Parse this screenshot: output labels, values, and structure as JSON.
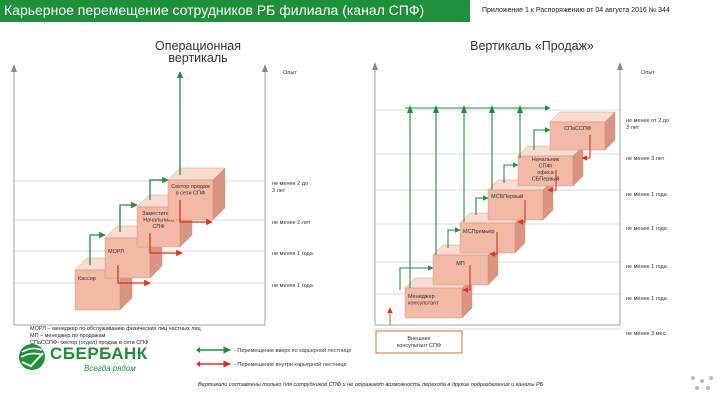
{
  "header": {
    "title": "Карьерное перемещение сотрудников РБ филиала (канал СПФ)",
    "appendix": "Приложение 1 к Распоряжению от 04 августа 2016 № 344"
  },
  "left": {
    "heading_line1": "Операционная",
    "heading_line2": "вертикаль",
    "experience": "Опыт",
    "boxes": [
      {
        "id": "kassir",
        "label": [
          "Кассир"
        ]
      },
      {
        "id": "mobsl",
        "label": [
          "МОРЛ"
        ]
      },
      {
        "id": "zam",
        "label": [
          "Заместитель",
          "Начальника",
          "СПФ"
        ]
      },
      {
        "id": "sektor",
        "label": [
          "Сектор продаж",
          "в сети СПФ"
        ]
      }
    ],
    "reqs": [
      [
        "не менее 1 года"
      ],
      [
        "не менее 1 года"
      ],
      [
        "не менее 2 лет"
      ],
      [
        "не менее 2 до",
        "3 лет"
      ]
    ]
  },
  "right": {
    "heading": "Вертикаль «Продаж»",
    "experience": "Опыт",
    "boxes": [
      {
        "id": "menedzher",
        "label": [
          "Менеджер",
          "консультант"
        ]
      },
      {
        "id": "mp",
        "label": [
          "МП"
        ]
      },
      {
        "id": "mspremer",
        "label": [
          "МСПремьер"
        ]
      },
      {
        "id": "msbpervyi",
        "label": [
          "МСБПервый"
        ]
      },
      {
        "id": "nach",
        "label": [
          "Начальник",
          "СПФ/",
          "офиса",
          "СБПервый"
        ]
      },
      {
        "id": "spfssr",
        "label": [
          "СПаССПФ"
        ]
      }
    ],
    "reqs": [
      [
        "не менее 3 мес."
      ],
      [
        "не менее 1 года"
      ],
      [
        "не менее 1 года"
      ],
      [
        "не менее 1 года"
      ],
      [
        "не менее 1 года"
      ],
      [
        "не менее 3 лет"
      ],
      [
        "не менее от 2 до",
        "3 лет"
      ]
    ],
    "external": [
      "Внешние",
      "консультант СПФ"
    ]
  },
  "legend": {
    "green": "- Перемещение вверх по карьерной лестнице",
    "red": "- Перемещение внутри карьерной лестнице"
  },
  "notes": [
    "МОРЛ – менеджер по обслуживанию физических лиц частных лиц",
    "МП – менеджер по продажам",
    "СПаССПФ- сектор (отдел) продаж в сети СПФ"
  ],
  "footer": "Вертикали составлены только для сотрудников СПФ и не отражают возможность перехода в другие подразделения и каналы РБ",
  "logo": {
    "name": "СБЕРБАНК",
    "slogan": "Всегда рядом"
  },
  "colors": {
    "accent_green": "#1e8f3a",
    "red": "#e03020",
    "box_front": "#f1b9a6",
    "box_top": "#f9dccf",
    "box_side": "#d99580"
  }
}
